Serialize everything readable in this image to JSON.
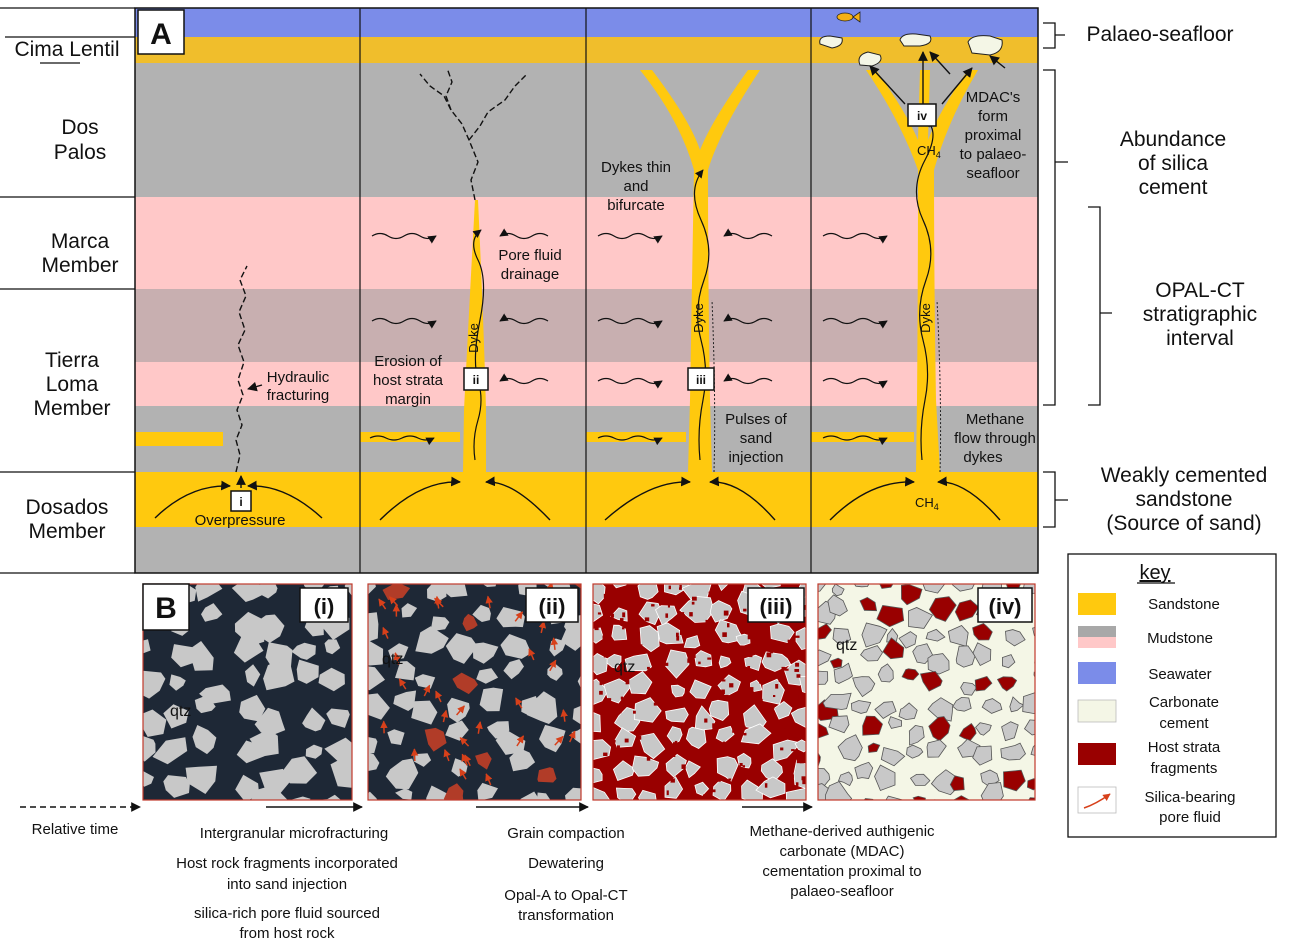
{
  "colors": {
    "sandstone": "#ffc90e",
    "mudstone_grey": "#b2b2b2",
    "mudstone_pink": "#ffc8c8",
    "mudstone_mauve": "#c8afb0",
    "seawater": "#7b8ce9",
    "carbonate": "#f4f6e6",
    "host_fragment": "#990000",
    "host_fragment_panel_ii": "#b13c28",
    "grain": "#c8c8c8",
    "matrix_dark": "#1e2836",
    "silica_arrow": "#d7401a"
  },
  "panel_a": {
    "letter": "A",
    "units": {
      "cima_lentil": "Cima Lentil",
      "dos_palos_1": "Dos",
      "dos_palos_2": "Palos",
      "marca_1": "Marca",
      "marca_2": "Member",
      "tierra_1": "Tierra",
      "tierra_2": "Loma",
      "tierra_3": "Member",
      "dosados_1": "Dosados",
      "dosados_2": "Member"
    },
    "stage_tags": [
      "i",
      "ii",
      "iii",
      "iv"
    ],
    "annotations": {
      "hydraulic_1": "Hydraulic",
      "hydraulic_2": "fracturing",
      "overpressure": "Overpressure",
      "pore_1": "Pore fluid",
      "pore_2": "drainage",
      "erosion_1": "Erosion of",
      "erosion_2": "host strata",
      "erosion_3": "margin",
      "dyke": "Dyke",
      "dykes_thin_1": "Dykes thin",
      "dykes_thin_2": "and",
      "dykes_thin_3": "bifurcate",
      "pulses_1": "Pulses of",
      "pulses_2": "sand",
      "pulses_3": "injection",
      "methane_1": "Methane",
      "methane_2": "flow through",
      "methane_3": "dykes",
      "mdac_1": "MDAC's",
      "mdac_2": "form",
      "mdac_3": "proximal",
      "mdac_4": "to palaeo-",
      "mdac_5": "seafloor",
      "ch4": "CH",
      "ch4_sub": "4"
    },
    "right_labels": {
      "palaeo_seafloor": "Palaeo-seafloor",
      "abundance_1": "Abundance",
      "abundance_2": "of silica",
      "abundance_3": "cement",
      "opal_1": "OPAL-CT",
      "opal_2": "stratigraphic",
      "opal_3": "interval",
      "weak_1": "Weakly cemented",
      "weak_2": "sandstone",
      "weak_3": "(Source of sand)"
    }
  },
  "panel_b": {
    "letter": "B",
    "tiles": [
      "(i)",
      "(ii)",
      "(iii)",
      "(iv)"
    ],
    "qtz": "qtz"
  },
  "key": {
    "title": "key",
    "items": [
      {
        "label": "Sandstone"
      },
      {
        "label": "Mudstone"
      },
      {
        "label": "Seawater"
      },
      {
        "label": "Carbonate",
        "label2": "cement"
      },
      {
        "label": "Host strata",
        "label2": "fragments"
      },
      {
        "label": "Silica-bearing",
        "label2": "pore fluid"
      }
    ]
  },
  "timeline": {
    "relative_time": "Relative time",
    "stage1": [
      "Intergranular microfracturing",
      "Host rock fragments incorporated",
      "into sand injection",
      "silica-rich pore fluid sourced",
      "from host rock"
    ],
    "stage2": [
      "Grain compaction",
      "Dewatering",
      "Opal-A to Opal-CT",
      "transformation"
    ],
    "stage3": [
      "Methane-derived authigenic",
      "carbonate (MDAC)",
      "cementation proximal to",
      "palaeo-seafloor"
    ]
  }
}
